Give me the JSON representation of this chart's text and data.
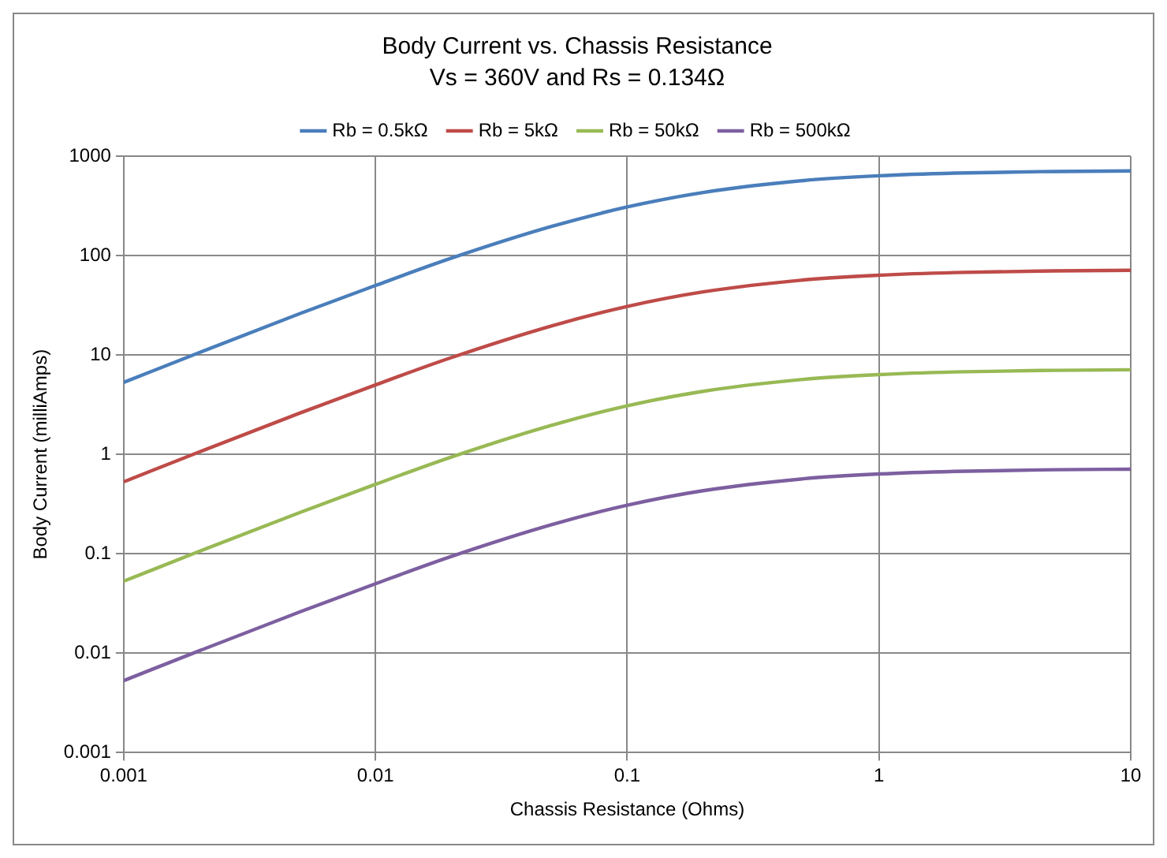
{
  "chart_data": {
    "type": "line",
    "title": "Body Current vs. Chassis Resistance",
    "subtitle": "Vs = 360V and Rs = 0.134Ω",
    "xlabel": "Chassis Resistance (Ohms)",
    "ylabel": "Body Current (milliAmps)",
    "log": "xy",
    "grid": true,
    "legend": "top",
    "marker": "none",
    "line_style": "solid",
    "x": [
      0.001,
      0.002,
      0.005,
      0.01,
      0.02,
      0.05,
      0.1,
      0.2,
      0.5,
      1,
      2,
      5,
      10
    ],
    "xlim": [
      0.001,
      10
    ],
    "xticks": [
      0.001,
      0.01,
      0.1,
      1,
      10
    ],
    "ylim": [
      0.001,
      1000
    ],
    "yticks": [
      0.001,
      0.01,
      0.1,
      1,
      10,
      100,
      1000
    ],
    "series": [
      {
        "name": "Rb = 0.5kΩ",
        "color": "#4a7ebb",
        "values": [
          5.3,
          10.6,
          26,
          50,
          94,
          196,
          308,
          431,
          568,
          635,
          675,
          701,
          710
        ]
      },
      {
        "name": "Rb = 5kΩ",
        "color": "#be4b48",
        "values": [
          0.53,
          1.06,
          2.6,
          5.0,
          9.4,
          19.6,
          30.8,
          43.1,
          56.8,
          63.5,
          67.5,
          70.1,
          71.0
        ]
      },
      {
        "name": "Rb = 50kΩ",
        "color": "#98b954",
        "values": [
          0.053,
          0.106,
          0.26,
          0.5,
          0.94,
          1.96,
          3.08,
          4.31,
          5.68,
          6.35,
          6.75,
          7.01,
          7.1
        ]
      },
      {
        "name": "Rb = 500kΩ",
        "color": "#7d5fa0",
        "values": [
          0.0053,
          0.0106,
          0.026,
          0.05,
          0.094,
          0.196,
          0.308,
          0.431,
          0.568,
          0.635,
          0.675,
          0.701,
          0.71
        ]
      }
    ]
  }
}
